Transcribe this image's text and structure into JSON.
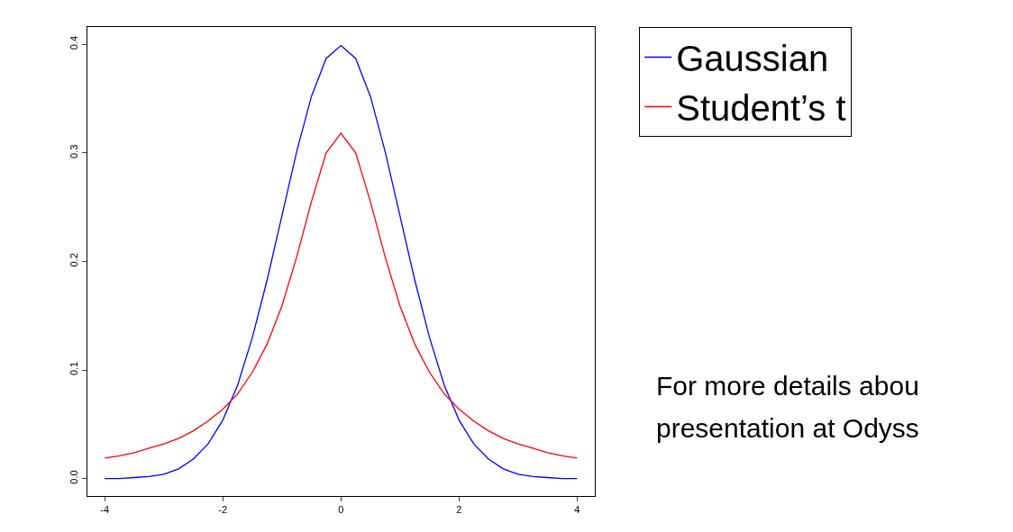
{
  "chart_data": {
    "type": "line",
    "x": [
      -4,
      -3.75,
      -3.5,
      -3.25,
      -3,
      -2.75,
      -2.5,
      -2.25,
      -2,
      -1.75,
      -1.5,
      -1.25,
      -1,
      -0.75,
      -0.5,
      -0.25,
      0,
      0.25,
      0.5,
      0.75,
      1,
      1.25,
      1.5,
      1.75,
      2,
      2.25,
      2.5,
      2.75,
      3,
      3.25,
      3.5,
      3.75,
      4
    ],
    "series": [
      {
        "name": "Gaussian",
        "color": "#0000ff",
        "values": [
          0.0,
          0.0,
          0.001,
          0.002,
          0.004,
          0.009,
          0.018,
          0.032,
          0.054,
          0.086,
          0.13,
          0.183,
          0.242,
          0.301,
          0.352,
          0.387,
          0.399,
          0.387,
          0.352,
          0.301,
          0.242,
          0.183,
          0.13,
          0.086,
          0.054,
          0.032,
          0.018,
          0.009,
          0.004,
          0.002,
          0.001,
          0.0,
          0.0
        ]
      },
      {
        "name": "Student’s t",
        "color": "#ff0000",
        "values": [
          0.019,
          0.021,
          0.024,
          0.028,
          0.032,
          0.037,
          0.044,
          0.053,
          0.064,
          0.078,
          0.098,
          0.124,
          0.159,
          0.204,
          0.255,
          0.3,
          0.318,
          0.3,
          0.255,
          0.204,
          0.159,
          0.124,
          0.098,
          0.078,
          0.064,
          0.053,
          0.044,
          0.037,
          0.032,
          0.028,
          0.024,
          0.021,
          0.019
        ]
      }
    ],
    "xlim": [
      -4.3,
      4.3
    ],
    "xticks": [
      -4,
      -2,
      0,
      2,
      4
    ],
    "ylim": [
      -0.016,
      0.416
    ],
    "yticks": [
      {
        "value": 0,
        "label": "0.0"
      },
      0.1,
      0.2,
      0.3,
      0.4
    ],
    "legend": "top right",
    "marker": "none",
    "line_style": "solid",
    "annotations": [
      "For more details abou",
      "presentation at Odyss"
    ]
  }
}
